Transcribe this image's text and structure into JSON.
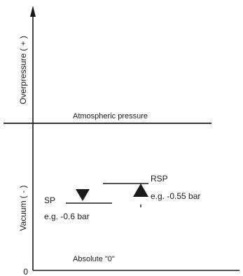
{
  "axis": {
    "upper_label": "Overpressure ( + )",
    "lower_label": "Vacuum ( - )",
    "zero_label": "0"
  },
  "atmospheric": {
    "label": "Atmospheric pressure"
  },
  "setpoints": {
    "sp": {
      "label": "SP",
      "example": "e.g. -0.6 bar"
    },
    "rsp": {
      "label": "RSP",
      "example": "e.g. -0.55 bar"
    }
  },
  "absolute": {
    "label": "Absolute \"0\""
  }
}
